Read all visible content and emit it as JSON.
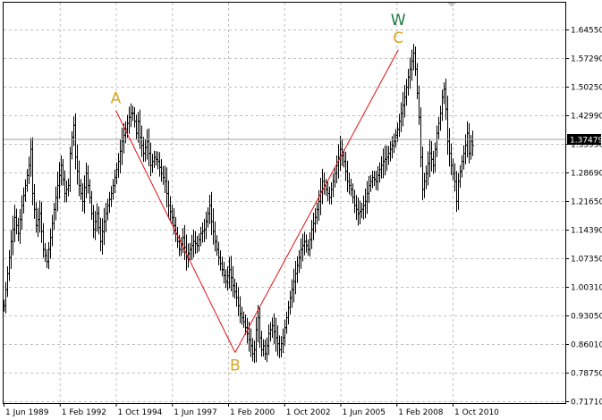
{
  "chart_data": {
    "type": "ohlc-bar",
    "title": "",
    "xlabel": "",
    "ylabel": "",
    "x_tick_labels": [
      "1 Jun 1989",
      "1 Feb 1992",
      "1 Oct 1994",
      "1 Jun 1997",
      "1 Feb 2000",
      "1 Oct 2002",
      "1 Jun 2005",
      "1 Feb 2008",
      "1 Oct 2010"
    ],
    "y_tick_labels": [
      "1.64550",
      "1.57290",
      "1.50250",
      "1.42990",
      "1.35950",
      "1.28690",
      "1.21650",
      "1.14390",
      "1.07350",
      "1.00310",
      "0.93050",
      "0.86010",
      "0.78750",
      "0.71710"
    ],
    "ylim": [
      0.7171,
      1.7159
    ],
    "grid": true,
    "current_price": {
      "value": 1.37479,
      "label": "1.37479"
    },
    "wave_points": [
      {
        "label": "A",
        "date": "1994-10",
        "value": 1.447
      },
      {
        "label": "B",
        "date": "2000-06",
        "value": 0.843
      },
      {
        "label": "C",
        "date": "2008-03",
        "value": 1.598
      }
    ],
    "wave_degree_label": "W",
    "colors": {
      "bars": "#000000",
      "grid": "#c0c0c0",
      "wave_line": "#e01010",
      "abc_labels": "#daa520",
      "w_label": "#1a7a3a",
      "current_price_bg": "#000000",
      "current_price_text": "#ffffff"
    },
    "price_path": [
      [
        0,
        0.96
      ],
      [
        4,
        1.04
      ],
      [
        8,
        1.12
      ],
      [
        12,
        1.18
      ],
      [
        16,
        1.14
      ],
      [
        20,
        1.21
      ],
      [
        24,
        1.26
      ],
      [
        28,
        1.31
      ],
      [
        30,
        1.35
      ],
      [
        32,
        1.24
      ],
      [
        36,
        1.16
      ],
      [
        40,
        1.19
      ],
      [
        44,
        1.1
      ],
      [
        48,
        1.07
      ],
      [
        52,
        1.13
      ],
      [
        56,
        1.2
      ],
      [
        60,
        1.26
      ],
      [
        64,
        1.31
      ],
      [
        68,
        1.24
      ],
      [
        72,
        1.26
      ],
      [
        74,
        1.34
      ],
      [
        76,
        1.38
      ],
      [
        78,
        1.41
      ],
      [
        80,
        1.33
      ],
      [
        84,
        1.26
      ],
      [
        88,
        1.22
      ],
      [
        92,
        1.29
      ],
      [
        96,
        1.23
      ],
      [
        100,
        1.15
      ],
      [
        104,
        1.19
      ],
      [
        108,
        1.12
      ],
      [
        112,
        1.17
      ],
      [
        116,
        1.21
      ],
      [
        120,
        1.24
      ],
      [
        124,
        1.28
      ],
      [
        128,
        1.32
      ],
      [
        132,
        1.37
      ],
      [
        136,
        1.4
      ],
      [
        140,
        1.43
      ],
      [
        142,
        1.44
      ],
      [
        144,
        1.44
      ],
      [
        146,
        1.42
      ],
      [
        148,
        1.39
      ],
      [
        150,
        1.42
      ],
      [
        152,
        1.38
      ],
      [
        156,
        1.34
      ],
      [
        160,
        1.37
      ],
      [
        164,
        1.31
      ],
      [
        168,
        1.33
      ],
      [
        172,
        1.32
      ],
      [
        176,
        1.29
      ],
      [
        180,
        1.27
      ],
      [
        184,
        1.21
      ],
      [
        188,
        1.18
      ],
      [
        192,
        1.14
      ],
      [
        196,
        1.1
      ],
      [
        200,
        1.13
      ],
      [
        204,
        1.08
      ],
      [
        208,
        1.1
      ],
      [
        212,
        1.12
      ],
      [
        216,
        1.11
      ],
      [
        220,
        1.14
      ],
      [
        224,
        1.15
      ],
      [
        228,
        1.19
      ],
      [
        230,
        1.21
      ],
      [
        232,
        1.17
      ],
      [
        236,
        1.12
      ],
      [
        240,
        1.08
      ],
      [
        244,
        1.05
      ],
      [
        248,
        1.02
      ],
      [
        252,
        1.05
      ],
      [
        256,
        1.01
      ],
      [
        260,
        0.98
      ],
      [
        264,
        0.94
      ],
      [
        268,
        0.92
      ],
      [
        272,
        0.89
      ],
      [
        276,
        0.86
      ],
      [
        278,
        0.84
      ],
      [
        280,
        0.85
      ],
      [
        282,
        0.9
      ],
      [
        284,
        0.93
      ],
      [
        286,
        0.88
      ],
      [
        288,
        0.85
      ],
      [
        290,
        0.86
      ],
      [
        292,
        0.84
      ],
      [
        294,
        0.86
      ],
      [
        296,
        0.89
      ],
      [
        300,
        0.91
      ],
      [
        304,
        0.88
      ],
      [
        308,
        0.85
      ],
      [
        312,
        0.88
      ],
      [
        316,
        0.93
      ],
      [
        320,
        0.98
      ],
      [
        324,
        1.02
      ],
      [
        328,
        1.06
      ],
      [
        332,
        1.1
      ],
      [
        336,
        1.12
      ],
      [
        340,
        1.1
      ],
      [
        344,
        1.15
      ],
      [
        348,
        1.18
      ],
      [
        352,
        1.22
      ],
      [
        356,
        1.27
      ],
      [
        360,
        1.25
      ],
      [
        364,
        1.23
      ],
      [
        368,
        1.27
      ],
      [
        372,
        1.31
      ],
      [
        376,
        1.35
      ],
      [
        380,
        1.32
      ],
      [
        384,
        1.27
      ],
      [
        388,
        1.25
      ],
      [
        392,
        1.21
      ],
      [
        396,
        1.19
      ],
      [
        400,
        1.2
      ],
      [
        404,
        1.22
      ],
      [
        408,
        1.26
      ],
      [
        412,
        1.28
      ],
      [
        416,
        1.27
      ],
      [
        420,
        1.3
      ],
      [
        424,
        1.32
      ],
      [
        428,
        1.33
      ],
      [
        432,
        1.35
      ],
      [
        436,
        1.37
      ],
      [
        440,
        1.4
      ],
      [
        444,
        1.44
      ],
      [
        448,
        1.48
      ],
      [
        452,
        1.53
      ],
      [
        456,
        1.57
      ],
      [
        458,
        1.59
      ],
      [
        460,
        1.55
      ],
      [
        462,
        1.49
      ],
      [
        464,
        1.43
      ],
      [
        466,
        1.33
      ],
      [
        468,
        1.25
      ],
      [
        472,
        1.29
      ],
      [
        476,
        1.34
      ],
      [
        480,
        1.31
      ],
      [
        484,
        1.39
      ],
      [
        488,
        1.44
      ],
      [
        490,
        1.48
      ],
      [
        492,
        1.5
      ],
      [
        494,
        1.45
      ],
      [
        496,
        1.37
      ],
      [
        500,
        1.31
      ],
      [
        504,
        1.27
      ],
      [
        506,
        1.22
      ],
      [
        508,
        1.27
      ],
      [
        512,
        1.32
      ],
      [
        516,
        1.36
      ],
      [
        518,
        1.39
      ],
      [
        520,
        1.34
      ],
      [
        522,
        1.37
      ],
      [
        524,
        1.36
      ]
    ]
  }
}
